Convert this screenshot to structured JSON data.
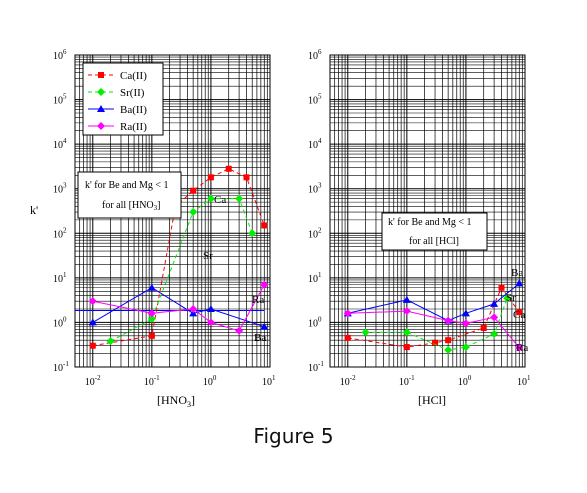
{
  "figure": {
    "caption": "Figure 5"
  },
  "chart_data": [
    {
      "type": "line",
      "id": "hno3",
      "xlabel": "[HNO",
      "xlabel_sub": "3",
      "xlabel_close": "]",
      "ylabel": "k'",
      "xscale": "log",
      "yscale": "log",
      "xlim": [
        0.005,
        10
      ],
      "ylim": [
        0.1,
        1000000
      ],
      "grid": true,
      "legend": {
        "placement": "top-left",
        "entries": [
          "Ca(II)",
          "Sr(II)",
          "Ba(II)",
          "Ra(II)"
        ]
      },
      "annotation": {
        "line1": "k' for Be and Mg < 1",
        "line2": "for all [HNO",
        "sub": "3",
        "close": "]"
      },
      "series": [
        {
          "name": "Ca(II)",
          "color": "#ff0000",
          "marker": "square",
          "linestyle": "dashed",
          "label": "Ca",
          "points": [
            [
              0.01,
              0.3
            ],
            [
              0.1,
              0.5
            ],
            [
              0.25,
              400
            ],
            [
              0.5,
              900
            ],
            [
              1,
              1800
            ],
            [
              2,
              2800
            ],
            [
              4,
              1800
            ],
            [
              8,
              150
            ]
          ]
        },
        {
          "name": "Sr(II)",
          "color": "#00ee00",
          "marker": "diamond",
          "linestyle": "dashed",
          "label": "Sr",
          "points": [
            [
              0.02,
              0.38
            ],
            [
              0.1,
              1.2
            ],
            [
              0.5,
              300
            ],
            [
              1,
              600
            ],
            [
              3,
              600
            ],
            [
              5,
              100
            ]
          ]
        },
        {
          "name": "Ba(II)",
          "color": "#0000ff",
          "marker": "triangle",
          "linestyle": "solid",
          "label": "Ba",
          "points": [
            [
              0.01,
              1.0
            ],
            [
              0.1,
              6
            ],
            [
              0.5,
              1.6
            ],
            [
              1,
              2.0
            ],
            [
              8,
              0.8
            ]
          ]
        },
        {
          "name": "Ra(II)",
          "color": "#ff00ff",
          "marker": "diamond",
          "linestyle": "solid",
          "label": "Ra",
          "points": [
            [
              0.01,
              3.0
            ],
            [
              0.1,
              1.6
            ],
            [
              0.5,
              2.0
            ],
            [
              1,
              1.0
            ],
            [
              3,
              0.65
            ],
            [
              8,
              7
            ]
          ]
        }
      ],
      "reference_line": {
        "points": [
          [
            0.005,
            1.85
          ],
          [
            8,
            1.85
          ]
        ],
        "color": "#0000ff"
      }
    },
    {
      "type": "line",
      "id": "hcl",
      "xlabel": "[HCl]",
      "xscale": "log",
      "yscale": "log",
      "xlim": [
        0.005,
        10
      ],
      "ylim": [
        0.1,
        1000000
      ],
      "grid": true,
      "annotation": {
        "line1": "k' for Be and Mg < 1",
        "line2": "for all [HCl]"
      },
      "series": [
        {
          "name": "Ca(II)",
          "color": "#ff0000",
          "marker": "square",
          "linestyle": "dashed",
          "label": "Ca",
          "points": [
            [
              0.01,
              0.45
            ],
            [
              0.1,
              0.28
            ],
            [
              0.3,
              0.35
            ],
            [
              0.5,
              0.4
            ],
            [
              2,
              0.75
            ],
            [
              4,
              6
            ],
            [
              8,
              1.7
            ]
          ]
        },
        {
          "name": "Sr(II)",
          "color": "#00ee00",
          "marker": "diamond",
          "linestyle": "dashed",
          "label": "Sr",
          "points": [
            [
              0.02,
              0.6
            ],
            [
              0.1,
              0.6
            ],
            [
              0.5,
              0.24
            ],
            [
              1,
              0.28
            ],
            [
              3,
              0.55
            ],
            [
              5,
              3.5
            ]
          ]
        },
        {
          "name": "Ba(II)",
          "color": "#0000ff",
          "marker": "triangle",
          "linestyle": "solid",
          "label": "Ba",
          "points": [
            [
              0.01,
              1.6
            ],
            [
              0.1,
              3.2
            ],
            [
              0.5,
              1.1
            ],
            [
              1,
              1.6
            ],
            [
              3,
              2.6
            ],
            [
              8,
              7.5
            ]
          ]
        },
        {
          "name": "Ra(II)",
          "color": "#ff00ff",
          "marker": "diamond",
          "linestyle": "solid",
          "label": "Ra",
          "points": [
            [
              0.01,
              1.6
            ],
            [
              0.1,
              1.8
            ],
            [
              0.5,
              1.1
            ],
            [
              1,
              0.95
            ],
            [
              3,
              1.3
            ],
            [
              8,
              0.27
            ]
          ]
        }
      ]
    }
  ]
}
